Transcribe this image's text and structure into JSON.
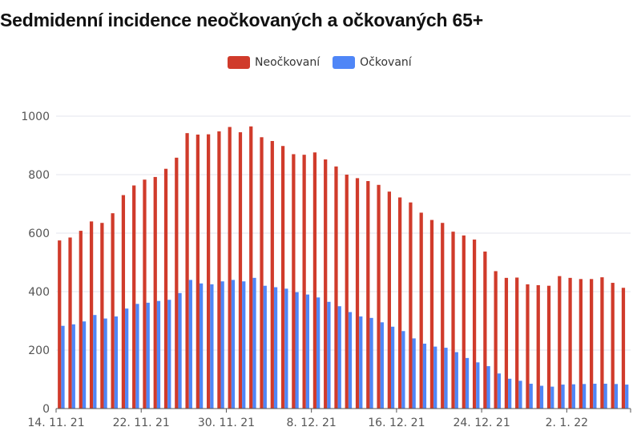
{
  "chart_data": {
    "type": "bar",
    "title": "Sedmidenní incidence neočkovaných a očkovaných 65+",
    "xlabel": "",
    "ylabel": "",
    "ylim": [
      0,
      1000
    ],
    "y_ticks": [
      0,
      200,
      400,
      600,
      800,
      1000
    ],
    "grid": true,
    "legend_position": "top-center",
    "colors": {
      "unvaccinated": "#d03b2b",
      "vaccinated": "#4f86f7"
    },
    "x_tick_labels": [
      "14. 11. 21",
      "22. 11. 21",
      "30. 11. 21",
      "8. 12. 21",
      "16. 12. 21",
      "24. 12. 21",
      "2. 1. 22"
    ],
    "x_tick_index": [
      0,
      8,
      16,
      24,
      32,
      40,
      48
    ],
    "series": [
      {
        "name": "Neočkovaní",
        "values": [
          575,
          585,
          608,
          640,
          635,
          668,
          730,
          763,
          783,
          792,
          820,
          858,
          942,
          937,
          938,
          948,
          963,
          945,
          965,
          928,
          915,
          898,
          870,
          868,
          876,
          852,
          828,
          800,
          788,
          778,
          765,
          742,
          722,
          705,
          670,
          645,
          635,
          605,
          592,
          578,
          537,
          470,
          447,
          448,
          425,
          422,
          420,
          453,
          447,
          443,
          443,
          449,
          430,
          413
        ]
      },
      {
        "name": "Očkovaní",
        "values": [
          283,
          288,
          298,
          320,
          308,
          315,
          342,
          358,
          362,
          368,
          372,
          395,
          440,
          428,
          425,
          435,
          440,
          435,
          447,
          420,
          415,
          410,
          398,
          390,
          380,
          365,
          350,
          330,
          315,
          310,
          295,
          280,
          265,
          240,
          222,
          212,
          208,
          193,
          173,
          158,
          145,
          120,
          102,
          95,
          85,
          78,
          75,
          82,
          83,
          84,
          85,
          85,
          84,
          82
        ]
      }
    ]
  }
}
